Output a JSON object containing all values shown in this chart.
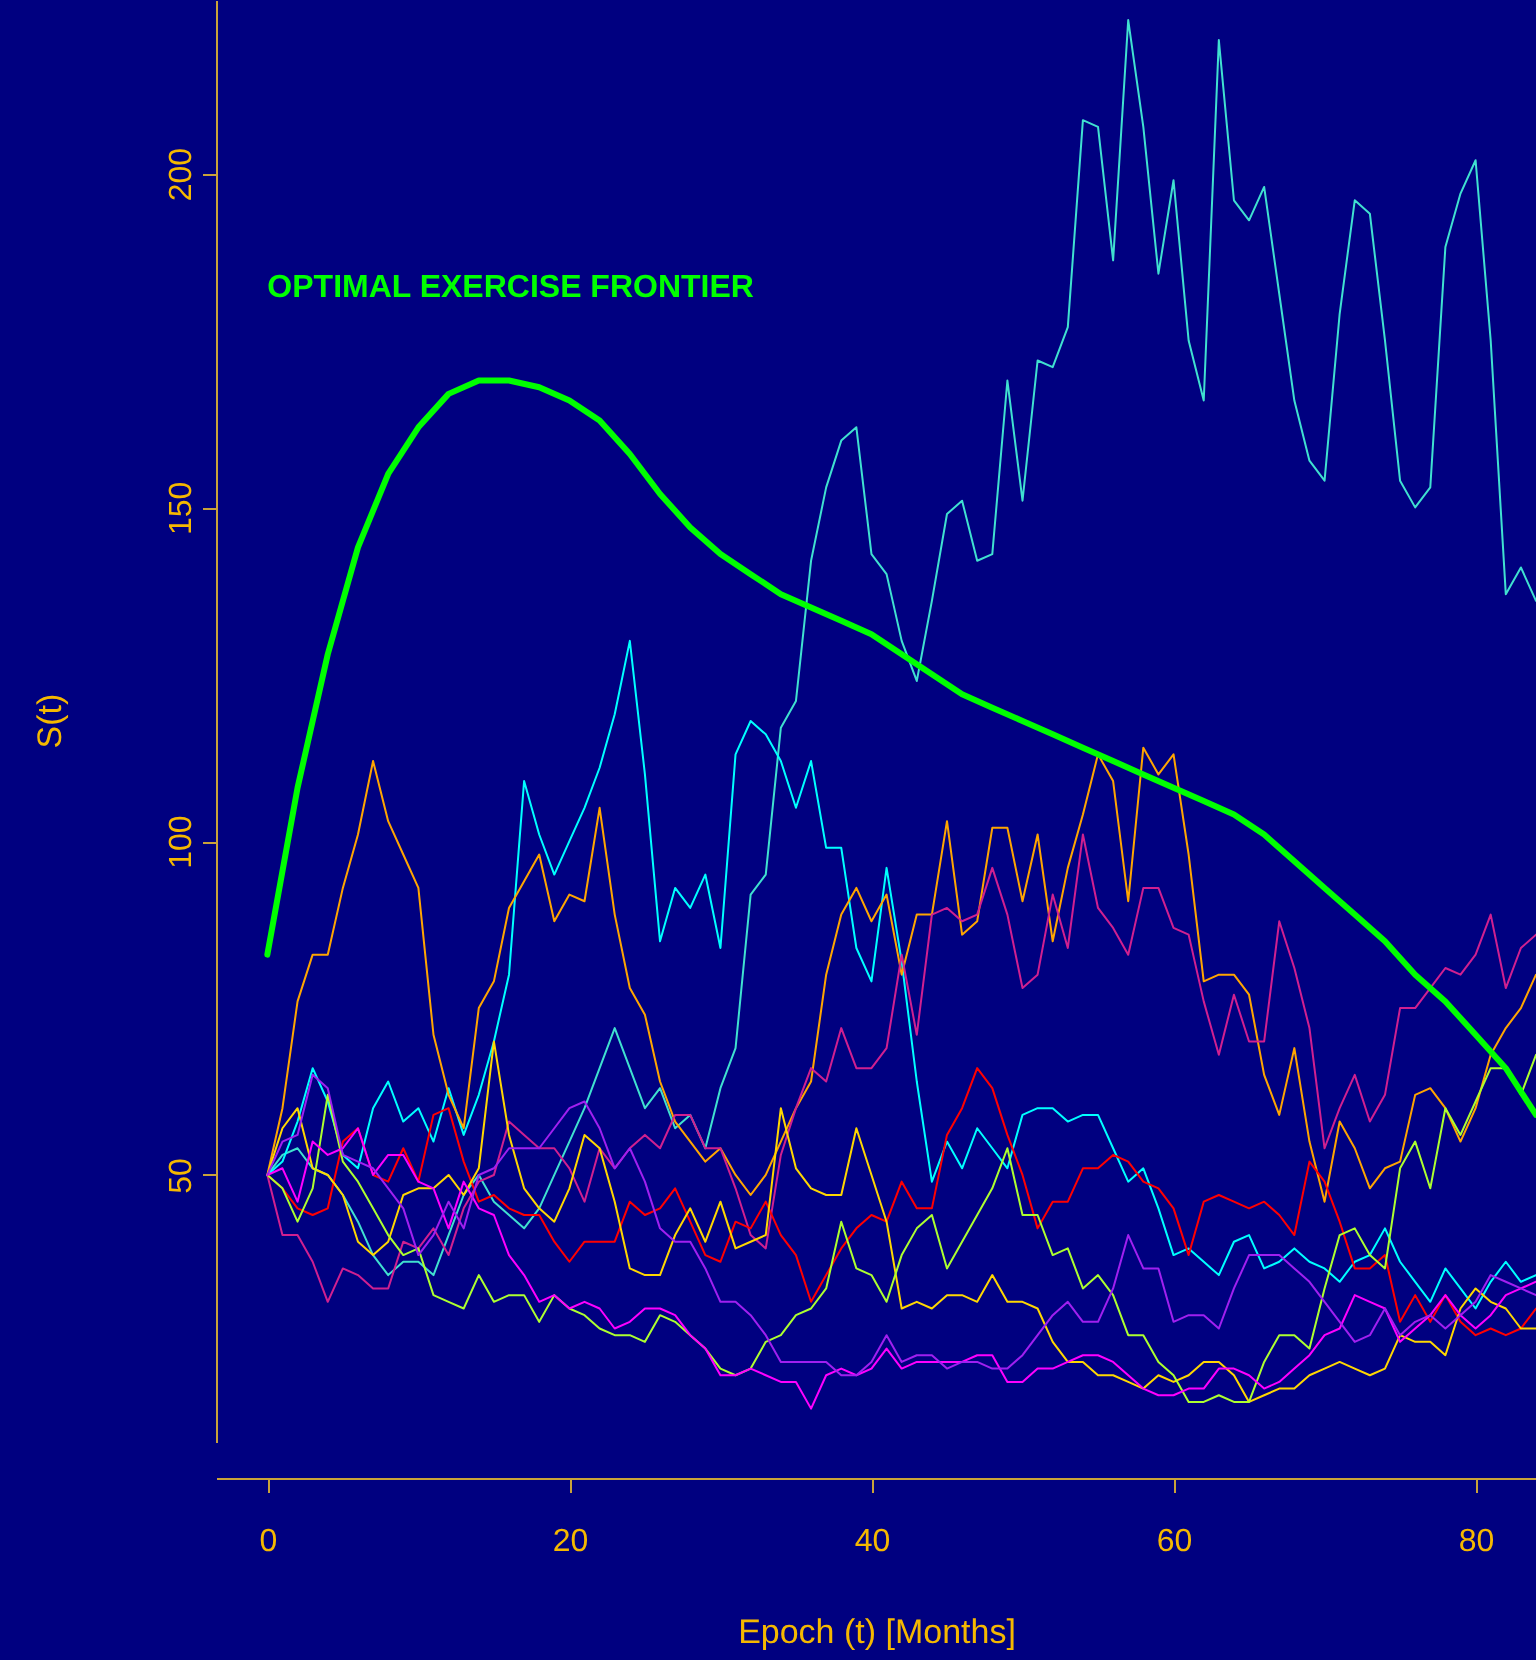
{
  "chart_data": {
    "type": "line",
    "xlabel": "Epoch (t) [Months]",
    "ylabel": "S(t)",
    "x": [
      0,
      1,
      2,
      3,
      4,
      5,
      6,
      7,
      8,
      9,
      10,
      11,
      12,
      13,
      14,
      15,
      16,
      17,
      18,
      19,
      20,
      21,
      22,
      23,
      24,
      25,
      26,
      27,
      28,
      29,
      30,
      31,
      32,
      33,
      34,
      35,
      36,
      37,
      38,
      39,
      40,
      41,
      42,
      43,
      44,
      45,
      46,
      47,
      48,
      49,
      50,
      51,
      52,
      53,
      54,
      55,
      56,
      57,
      58,
      59,
      60,
      61,
      62,
      63,
      64,
      65,
      66,
      67,
      68,
      69,
      70,
      71,
      72,
      73,
      74,
      75,
      76,
      77,
      78,
      79,
      80,
      81,
      82,
      83,
      84
    ],
    "xlim": [
      -3.4,
      84
    ],
    "ylim": [
      10,
      226
    ],
    "xticks": [
      0,
      20,
      40,
      60,
      80
    ],
    "yticks": [
      50,
      100,
      150,
      200
    ],
    "grid": false,
    "series": [
      {
        "color": "#40e0d0",
        "values": [
          50,
          53,
          54,
          51,
          50,
          47,
          43,
          38,
          35,
          37,
          37,
          35,
          41,
          47,
          50,
          46,
          44,
          42,
          45,
          50,
          55,
          60,
          66,
          72,
          66,
          60,
          63,
          57,
          59,
          54,
          63,
          69,
          92,
          95,
          117,
          121,
          142,
          153,
          160,
          162,
          143,
          140,
          130,
          124,
          136,
          149,
          151,
          142,
          143,
          169,
          151,
          172,
          171,
          177,
          208,
          207,
          187,
          223,
          207,
          185,
          199,
          175,
          166,
          220,
          196,
          193,
          198,
          182,
          166,
          157,
          154,
          179,
          196,
          194,
          175,
          154,
          150,
          153,
          189,
          197,
          202,
          175,
          137,
          141,
          136
        ]
      },
      {
        "color": "#00ffff",
        "values": [
          50,
          52,
          58,
          66,
          61,
          53,
          51,
          60,
          64,
          58,
          60,
          55,
          63,
          56,
          62,
          70,
          80,
          109,
          101,
          95,
          100,
          105,
          111,
          119,
          130,
          110,
          85,
          93,
          90,
          95,
          84,
          113,
          118,
          116,
          112,
          105,
          112,
          99,
          99,
          84,
          79,
          96,
          82,
          64,
          49,
          55,
          51,
          57,
          54,
          51,
          59,
          60,
          60,
          58,
          59,
          59,
          54,
          49,
          51,
          45,
          38,
          39,
          37,
          35,
          40,
          41,
          36,
          37,
          39,
          37,
          36,
          34,
          37,
          38,
          42,
          37,
          34,
          31,
          36,
          33,
          30,
          34,
          37,
          34,
          35
        ]
      },
      {
        "color": "#ffa500",
        "values": [
          50,
          60,
          76,
          83,
          83,
          93,
          101,
          112,
          103,
          98,
          93,
          71,
          62,
          57,
          75,
          79,
          90,
          94,
          98,
          88,
          92,
          91,
          105,
          89,
          78,
          74,
          64,
          58,
          55,
          52,
          54,
          50,
          47,
          50,
          55,
          60,
          64,
          80,
          89,
          93,
          88,
          92,
          80,
          89,
          89,
          103,
          86,
          88,
          102,
          102,
          91,
          101,
          85,
          96,
          104,
          113,
          109,
          91,
          114,
          110,
          113,
          98,
          79,
          80,
          80,
          77,
          65,
          59,
          69,
          55,
          46,
          58,
          54,
          48,
          51,
          52,
          62,
          63,
          60,
          55,
          60,
          68,
          72,
          75,
          80
        ]
      },
      {
        "color": "#d02090",
        "values": [
          50,
          41,
          41,
          37,
          31,
          36,
          35,
          33,
          33,
          40,
          39,
          42,
          38,
          45,
          49,
          50,
          58,
          56,
          54,
          54,
          51,
          46,
          54,
          51,
          54,
          56,
          54,
          59,
          59,
          54,
          54,
          48,
          41,
          39,
          53,
          60,
          66,
          64,
          72,
          66,
          66,
          69,
          83,
          71,
          89,
          90,
          88,
          89,
          96,
          89,
          78,
          80,
          92,
          84,
          101,
          90,
          87,
          83,
          93,
          93,
          87,
          86,
          76,
          68,
          77,
          70,
          70,
          88,
          81,
          72,
          54,
          60,
          65,
          58,
          62,
          75,
          75,
          78,
          81,
          80,
          83,
          89,
          78,
          84,
          86
        ]
      },
      {
        "color": "#ff0000",
        "values": [
          50,
          48,
          45,
          44,
          45,
          55,
          57,
          50,
          49,
          54,
          49,
          59,
          60,
          52,
          46,
          47,
          45,
          44,
          44,
          40,
          37,
          40,
          40,
          40,
          46,
          44,
          45,
          48,
          43,
          38,
          37,
          43,
          42,
          46,
          41,
          38,
          31,
          35,
          39,
          42,
          44,
          43,
          49,
          45,
          45,
          56,
          60,
          66,
          63,
          56,
          50,
          42,
          46,
          46,
          51,
          51,
          53,
          52,
          49,
          48,
          45,
          38,
          46,
          47,
          46,
          45,
          46,
          44,
          41,
          52,
          49,
          43,
          36,
          36,
          38,
          28,
          32,
          28,
          32,
          28,
          26,
          27,
          26,
          27,
          30
        ]
      },
      {
        "color": "#ffd700",
        "values": [
          50,
          57,
          60,
          51,
          50,
          47,
          40,
          38,
          40,
          47,
          48,
          48,
          50,
          47,
          51,
          70,
          56,
          48,
          45,
          43,
          48,
          56,
          54,
          46,
          36,
          35,
          35,
          41,
          45,
          40,
          46,
          39,
          40,
          41,
          60,
          51,
          48,
          47,
          47,
          57,
          50,
          43,
          30,
          31,
          30,
          32,
          32,
          31,
          35,
          31,
          31,
          30,
          25,
          22,
          22,
          20,
          20,
          19,
          18,
          20,
          19,
          20,
          22,
          22,
          20,
          16,
          17,
          18,
          18,
          20,
          21,
          22,
          21,
          20,
          21,
          26,
          25,
          25,
          23,
          30,
          33,
          31,
          30,
          27,
          27
        ]
      },
      {
        "color": "#adff2f",
        "values": [
          50,
          48,
          43,
          48,
          62,
          52,
          49,
          45,
          41,
          38,
          39,
          32,
          31,
          30,
          35,
          31,
          32,
          32,
          28,
          32,
          30,
          29,
          27,
          26,
          26,
          25,
          29,
          28,
          26,
          24,
          21,
          20,
          21,
          25,
          26,
          29,
          30,
          33,
          43,
          36,
          35,
          31,
          38,
          42,
          44,
          36,
          40,
          44,
          48,
          54,
          44,
          44,
          38,
          39,
          33,
          35,
          32,
          26,
          26,
          22,
          20,
          16,
          16,
          17,
          16,
          16,
          22,
          26,
          26,
          24,
          33,
          41,
          42,
          38,
          36,
          51,
          55,
          48,
          60,
          56,
          61,
          66,
          66,
          62,
          68
        ]
      },
      {
        "color": "#ff00ff",
        "values": [
          50,
          51,
          46,
          55,
          53,
          54,
          57,
          50,
          53,
          53,
          49,
          48,
          42,
          49,
          45,
          44,
          38,
          35,
          31,
          32,
          30,
          31,
          30,
          27,
          28,
          30,
          30,
          29,
          26,
          24,
          20,
          20,
          21,
          20,
          19,
          19,
          15,
          20,
          21,
          20,
          21,
          24,
          21,
          22,
          22,
          22,
          22,
          23,
          23,
          19,
          19,
          21,
          21,
          22,
          23,
          23,
          22,
          20,
          18,
          17,
          17,
          18,
          18,
          21,
          21,
          20,
          18,
          19,
          21,
          23,
          26,
          27,
          32,
          31,
          30,
          25,
          27,
          29,
          32,
          29,
          27,
          29,
          32,
          33,
          34
        ]
      },
      {
        "color": "#a020f0",
        "values": [
          50,
          55,
          56,
          65,
          63,
          53,
          52,
          51,
          48,
          45,
          38,
          41,
          46,
          42,
          50,
          51,
          54,
          54,
          54,
          57,
          60,
          61,
          57,
          51,
          54,
          49,
          42,
          40,
          40,
          36,
          31,
          31,
          29,
          26,
          22,
          22,
          22,
          22,
          20,
          20,
          22,
          26,
          22,
          23,
          23,
          21,
          22,
          22,
          21,
          21,
          23,
          26,
          29,
          31,
          28,
          28,
          33,
          41,
          36,
          36,
          28,
          29,
          29,
          27,
          33,
          38,
          38,
          38,
          36,
          34,
          31,
          28,
          25,
          26,
          30,
          26,
          28,
          29,
          27,
          29,
          31,
          35,
          34,
          33,
          32
        ]
      },
      {
        "name": "OPTIMAL EXERCISE FRONTIER",
        "color": "#00ff00",
        "x": [
          0,
          2,
          4,
          6,
          8,
          10,
          12,
          14,
          16,
          18,
          20,
          22,
          24,
          26,
          28,
          30,
          32,
          34,
          36,
          38,
          40,
          42,
          44,
          46,
          48,
          50,
          52,
          54,
          56,
          58,
          60,
          62,
          64,
          66,
          68,
          70,
          72,
          74,
          76,
          78,
          80,
          82,
          84
        ],
        "values": [
          83,
          108,
          128,
          144,
          155,
          162,
          167,
          169,
          169,
          168,
          166,
          163,
          158,
          152,
          147,
          143,
          140,
          137,
          135,
          133,
          131,
          128,
          125,
          122,
          120,
          118,
          116,
          114,
          112,
          110,
          108,
          106,
          104,
          101,
          97,
          93,
          89,
          85,
          80,
          76,
          71,
          66,
          59
        ]
      }
    ]
  }
}
